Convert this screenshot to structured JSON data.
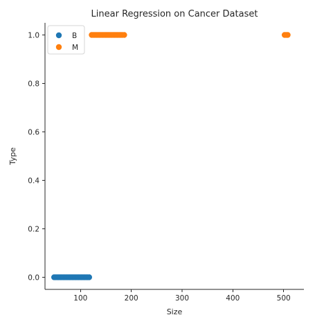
{
  "chart_data": {
    "type": "scatter",
    "title": "Linear Regression on Cancer Dataset",
    "xlabel": "Size",
    "ylabel": "Type",
    "xlim": [
      30,
      540
    ],
    "ylim": [
      -0.05,
      1.05
    ],
    "x_ticks": [
      100,
      200,
      300,
      400,
      500
    ],
    "y_ticks": [
      0.0,
      0.2,
      0.4,
      0.6,
      0.8,
      1.0
    ],
    "y_tick_labels": [
      "0.0",
      "0.2",
      "0.4",
      "0.6",
      "0.8",
      "1.0"
    ],
    "grid": false,
    "legend_position": "top-left",
    "series": [
      {
        "name": "B",
        "color": "#1f77b4",
        "points": [
          {
            "x": 48,
            "y": 0
          },
          {
            "x": 51,
            "y": 0
          },
          {
            "x": 54,
            "y": 0
          },
          {
            "x": 57,
            "y": 0
          },
          {
            "x": 60,
            "y": 0
          },
          {
            "x": 63,
            "y": 0
          },
          {
            "x": 66,
            "y": 0
          },
          {
            "x": 69,
            "y": 0
          },
          {
            "x": 72,
            "y": 0
          },
          {
            "x": 75,
            "y": 0
          },
          {
            "x": 78,
            "y": 0
          },
          {
            "x": 81,
            "y": 0
          },
          {
            "x": 84,
            "y": 0
          },
          {
            "x": 87,
            "y": 0
          },
          {
            "x": 90,
            "y": 0
          },
          {
            "x": 93,
            "y": 0
          },
          {
            "x": 96,
            "y": 0
          },
          {
            "x": 99,
            "y": 0
          },
          {
            "x": 102,
            "y": 0
          },
          {
            "x": 105,
            "y": 0
          },
          {
            "x": 108,
            "y": 0
          },
          {
            "x": 111,
            "y": 0
          },
          {
            "x": 114,
            "y": 0
          },
          {
            "x": 117,
            "y": 0
          }
        ]
      },
      {
        "name": "M",
        "color": "#ff7f0e",
        "points": [
          {
            "x": 122,
            "y": 1
          },
          {
            "x": 125,
            "y": 1
          },
          {
            "x": 128,
            "y": 1
          },
          {
            "x": 131,
            "y": 1
          },
          {
            "x": 134,
            "y": 1
          },
          {
            "x": 137,
            "y": 1
          },
          {
            "x": 140,
            "y": 1
          },
          {
            "x": 143,
            "y": 1
          },
          {
            "x": 146,
            "y": 1
          },
          {
            "x": 149,
            "y": 1
          },
          {
            "x": 152,
            "y": 1
          },
          {
            "x": 155,
            "y": 1
          },
          {
            "x": 158,
            "y": 1
          },
          {
            "x": 161,
            "y": 1
          },
          {
            "x": 164,
            "y": 1
          },
          {
            "x": 167,
            "y": 1
          },
          {
            "x": 170,
            "y": 1
          },
          {
            "x": 173,
            "y": 1
          },
          {
            "x": 176,
            "y": 1
          },
          {
            "x": 179,
            "y": 1
          },
          {
            "x": 182,
            "y": 1
          },
          {
            "x": 186,
            "y": 1
          },
          {
            "x": 502,
            "y": 1
          },
          {
            "x": 505,
            "y": 1
          },
          {
            "x": 508,
            "y": 1
          }
        ]
      }
    ]
  }
}
